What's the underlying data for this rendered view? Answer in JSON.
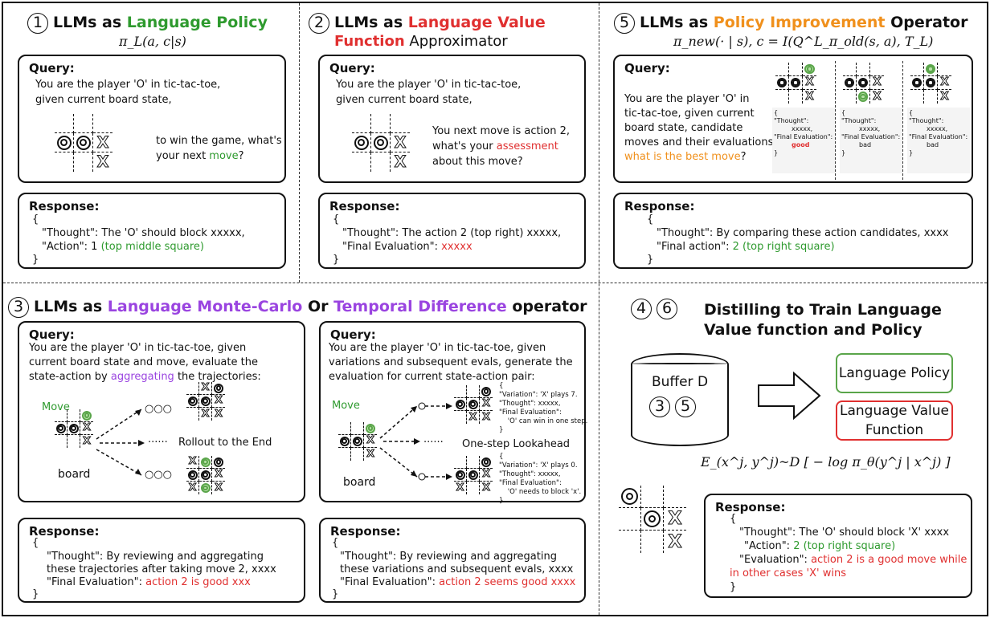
{
  "panel1": {
    "num": "1",
    "title_a": "LLMs as ",
    "title_b": "Language Policy",
    "formula": "π_L(a, c|s)",
    "query_label": "Query:",
    "q1": "You are the player 'O' in tic-tac-toe,",
    "q2": "given current board state,",
    "q3": "to win the game, what's",
    "q4a": "your next ",
    "q4b": "move",
    "q4c": "?",
    "board": [
      "",
      "",
      "",
      "O",
      "O",
      "X",
      "",
      "",
      "X"
    ],
    "response_label": "Response:",
    "r0": "{",
    "r1": "\"Thought\": The 'O' should block xxxxx,",
    "r2a": "\"Action\": 1 ",
    "r2b": "(top middle square)",
    "r3": "}"
  },
  "panel2": {
    "num": "2",
    "title_a": "LLMs as ",
    "title_b": "Language Value",
    "title_c": "Function",
    "title_d": " Approximator",
    "query_label": "Query:",
    "q1": "You are the player 'O' in tic-tac-toe,",
    "q2": "given current board state,",
    "q3": "You next move is action 2,",
    "q4a": "what's your ",
    "q4b": "assessment",
    "q5": "about this move?",
    "board": [
      "",
      "",
      "",
      "O",
      "O",
      "X",
      "",
      "",
      "X"
    ],
    "response_label": "Response:",
    "r0": "{",
    "r1": "\"Thought\": The action 2 (top right) xxxxx,",
    "r2a": "\"Final Evaluation\": ",
    "r2b": "xxxxx",
    "r3": "}"
  },
  "panel5": {
    "num": "5",
    "title_a": "LLMs as ",
    "title_b": "Policy Improvement",
    "title_c": " Operator",
    "formula": "π_new(· | s), c = I(Q^L_π_old(s, a), T_L)",
    "query_label": "Query:",
    "q1": "You are the player 'O' in",
    "q2": "tic-tac-toe,  given current",
    "q3": "board state, candidate",
    "q4": "moves and their evaluations,",
    "q5a": "what is the best move",
    "q5b": "?",
    "candidates": [
      {
        "board": [
          "",
          "",
          "g",
          "O",
          "O",
          "X",
          "",
          "",
          "X"
        ],
        "e0": "{",
        "e1": "\"Thought\":",
        "e2": "xxxxx,",
        "e3": "\"Final Evaluation\":",
        "e4": "good",
        "e5": "}"
      },
      {
        "board": [
          "",
          "",
          "",
          "O",
          "O",
          "X",
          "",
          "g",
          "X"
        ],
        "e0": "{",
        "e1": "\"Thought\":",
        "e2": "xxxxx,",
        "e3": "\"Final Evaluation\":",
        "e4": "bad",
        "e5": "}"
      },
      {
        "board": [
          "",
          "g",
          "",
          "O",
          "O",
          "X",
          "",
          "",
          "X"
        ],
        "e0": "{",
        "e1": "\"Thought\":",
        "e2": "xxxxx,",
        "e3": "\"Final Evaluation\":",
        "e4": "bad",
        "e5": "}"
      }
    ],
    "response_label": "Response:",
    "r0": "{",
    "r1": "\"Thought\": By comparing these action candidates, xxxx",
    "r2a": "\"Final action\": ",
    "r2b": "2 (top right square)",
    "r3": "}"
  },
  "panel3": {
    "num": "3",
    "title_a": "LLMs as ",
    "title_b": "Language Monte-Carlo",
    "title_c": " Or ",
    "title_d": "Temporal Difference",
    "title_e": " operator",
    "left": {
      "query_label": "Query:",
      "q1": "You are the player 'O' in tic-tac-toe,  given",
      "q2": "current board state and move, evaluate the",
      "q3a": "state-action by ",
      "q3b": "aggregating",
      "q3c": " the trajectories:",
      "move": "Move",
      "board_label": "board",
      "dots": "······",
      "rollout": "Rollout to the End",
      "ooo": "○○○",
      "board": [
        "",
        "",
        "g",
        "O",
        "O",
        "X",
        "",
        "",
        "X"
      ],
      "top_board": [
        "",
        "X",
        "O",
        "O",
        "O",
        "X",
        "",
        "X",
        "X"
      ],
      "bottom_board": [
        "X",
        "g",
        "O",
        "O",
        "O",
        "X",
        "X",
        "g",
        "X"
      ],
      "response_label": "Response:",
      "r0": "{",
      "r1": "\"Thought\": By reviewing and aggregating",
      "r2": "these trajectories after taking move 2, xxxx",
      "r3a": "\"Final Evaluation\": ",
      "r3b": "action 2 is good xxx",
      "r4": "}"
    },
    "right": {
      "query_label": "Query:",
      "q1": "You are the player 'O' in tic-tac-toe,  given",
      "q2": "variations and subsequent evals, generate the",
      "q3": "evaluation for current state-action pair:",
      "move": "Move",
      "board_label": "board",
      "dots": "······",
      "lookahead": "One-step Lookahead",
      "board": [
        "",
        "",
        "g",
        "O",
        "O",
        "X",
        "",
        "",
        "X"
      ],
      "top_board": [
        "",
        "",
        "O",
        "O",
        "O",
        "X",
        "",
        "X",
        "X"
      ],
      "bottom_board": [
        "",
        "",
        "O",
        "O",
        "O",
        "X",
        "X",
        "",
        "X"
      ],
      "top_note": "{\n\"Variation\": 'X' plays 7.\n\"Thought\": xxxxx,\n\"Final Evaluation\":\n    'O' can win in one step.\n}",
      "bottom_note": "{\n\"Variation\": 'X' plays 0.\n\"Thought\": xxxxx,\n\"Final Evaluation\":\n    'O' needs to block 'x'.\n}",
      "response_label": "Response:",
      "r0": "{",
      "r1": "\"Thought\": By reviewing and aggregating",
      "r2": "these variations and subsequent evals, xxxx",
      "r3a": "\"Final Evaluation\": ",
      "r3b": "action 2 seems good xxxx",
      "r4": "}"
    }
  },
  "panel46": {
    "num_a": "4",
    "num_b": "6",
    "title1": "Distilling to Train Language",
    "title2": "Value function and Policy",
    "buffer": "Buffer D",
    "buffer_num_a": "3",
    "buffer_num_b": "5",
    "policy": "Language Policy",
    "value1": "Language Value",
    "value2": "Function",
    "formula": "E_(x^j, y^j)~D [ − log π_θ(y^j | x^j) ]",
    "board": [
      "O",
      "",
      "",
      "",
      "O",
      "X",
      "",
      "",
      "X"
    ],
    "response_label": "Response:",
    "r0": "{",
    "r1": "\"Thought\": The 'O' should block 'X' xxxx",
    "r2a": "\"Action\": ",
    "r2b": "2 (top right square)",
    "r3a": "\"Evaluation\": ",
    "r3b": "action 2 is a good move while",
    "r4": "in other cases 'X' wins",
    "r5": "}"
  },
  "colors": {
    "green": "#2e9a2e",
    "red": "#e03030",
    "orange": "#f0901c",
    "purple": "#9a44e0"
  }
}
